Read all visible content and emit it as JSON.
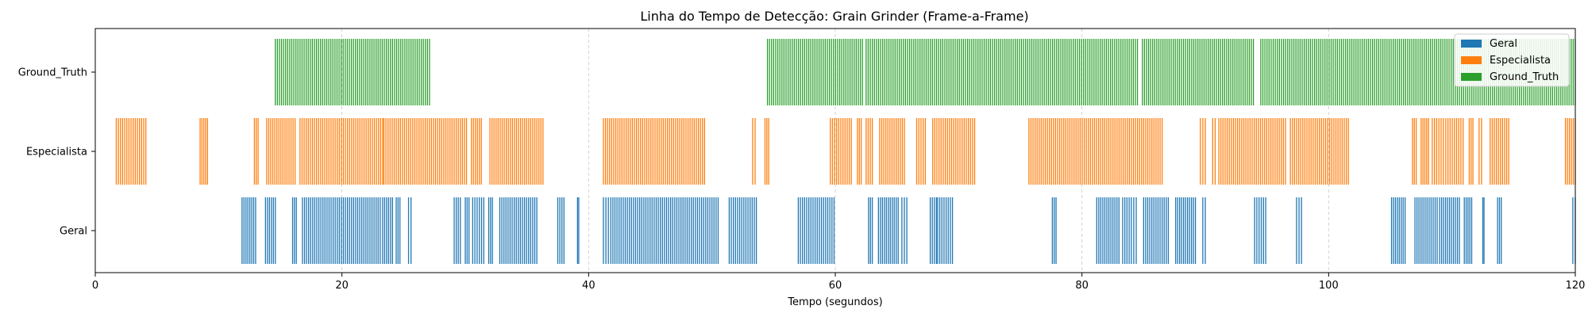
{
  "chart_data": {
    "type": "event-timeline",
    "title": "Linha do Tempo de Detecção: Grain Grinder (Frame-a-Frame)",
    "xlabel": "Tempo (segundos)",
    "ylabel": "",
    "xlim": [
      0,
      120
    ],
    "xticks": [
      0,
      20,
      40,
      60,
      80,
      100,
      120
    ],
    "grid": "x-dashed",
    "legend_position": "top-right",
    "categories": [
      "Geral",
      "Especialista",
      "Ground_Truth"
    ],
    "series": [
      {
        "name": "Geral",
        "color": "#1f77b4",
        "segments": [
          [
            11.9,
            13.0
          ],
          [
            13.8,
            14.6
          ],
          [
            16.0,
            16.3
          ],
          [
            16.8,
            23.1
          ],
          [
            23.3,
            24.1
          ],
          [
            24.4,
            24.7
          ],
          [
            25.4,
            25.6
          ],
          [
            29.1,
            29.6
          ],
          [
            30.0,
            30.3
          ],
          [
            30.6,
            31.5
          ],
          [
            31.9,
            32.2
          ],
          [
            32.8,
            35.8
          ],
          [
            37.5,
            38.0
          ],
          [
            39.1,
            39.2
          ],
          [
            41.2,
            41.6
          ],
          [
            41.8,
            50.5
          ],
          [
            51.4,
            53.6
          ],
          [
            57.0,
            59.9
          ],
          [
            62.7,
            63.0
          ],
          [
            63.5,
            65.1
          ],
          [
            65.4,
            65.8
          ],
          [
            67.7,
            68.2
          ],
          [
            68.3,
            69.5
          ],
          [
            77.6,
            77.9
          ],
          [
            81.2,
            83.0
          ],
          [
            83.3,
            84.0
          ],
          [
            84.2,
            84.4
          ],
          [
            85.0,
            87.0
          ],
          [
            87.6,
            89.2
          ],
          [
            89.8,
            90.0
          ],
          [
            94.0,
            94.9
          ],
          [
            97.4,
            97.8
          ],
          [
            105.1,
            106.2
          ],
          [
            107.0,
            108.8
          ],
          [
            109.0,
            110.6
          ],
          [
            111.0,
            111.6
          ],
          [
            112.5,
            112.6
          ],
          [
            113.7,
            114.0
          ],
          [
            119.8,
            120.0
          ]
        ]
      },
      {
        "name": "Especialista",
        "color": "#ff7f0e",
        "segments": [
          [
            1.7,
            4.1
          ],
          [
            8.5,
            9.1
          ],
          [
            12.9,
            13.2
          ],
          [
            13.9,
            16.2
          ],
          [
            16.6,
            23.3
          ],
          [
            23.4,
            30.1
          ],
          [
            30.5,
            31.3
          ],
          [
            32.0,
            36.3
          ],
          [
            41.2,
            49.4
          ],
          [
            53.3,
            53.5
          ],
          [
            54.3,
            54.6
          ],
          [
            59.6,
            61.3
          ],
          [
            61.8,
            62.1
          ],
          [
            62.5,
            63.0
          ],
          [
            63.6,
            65.6
          ],
          [
            66.6,
            67.3
          ],
          [
            67.9,
            71.3
          ],
          [
            75.7,
            86.5
          ],
          [
            89.6,
            90.0
          ],
          [
            90.6,
            90.8
          ],
          [
            91.1,
            96.5
          ],
          [
            96.9,
            101.6
          ],
          [
            106.8,
            107.1
          ],
          [
            107.5,
            108.1
          ],
          [
            108.4,
            109.3
          ],
          [
            109.5,
            110.9
          ],
          [
            111.4,
            111.7
          ],
          [
            112.2,
            112.4
          ],
          [
            113.1,
            114.6
          ],
          [
            119.2,
            120.0
          ]
        ]
      },
      {
        "name": "Ground_Truth",
        "color": "#2ca02c",
        "segments": [
          [
            14.6,
            27.1
          ],
          [
            54.5,
            62.2
          ],
          [
            62.5,
            84.5
          ],
          [
            84.9,
            93.9
          ],
          [
            94.5,
            120.0
          ]
        ]
      }
    ]
  }
}
